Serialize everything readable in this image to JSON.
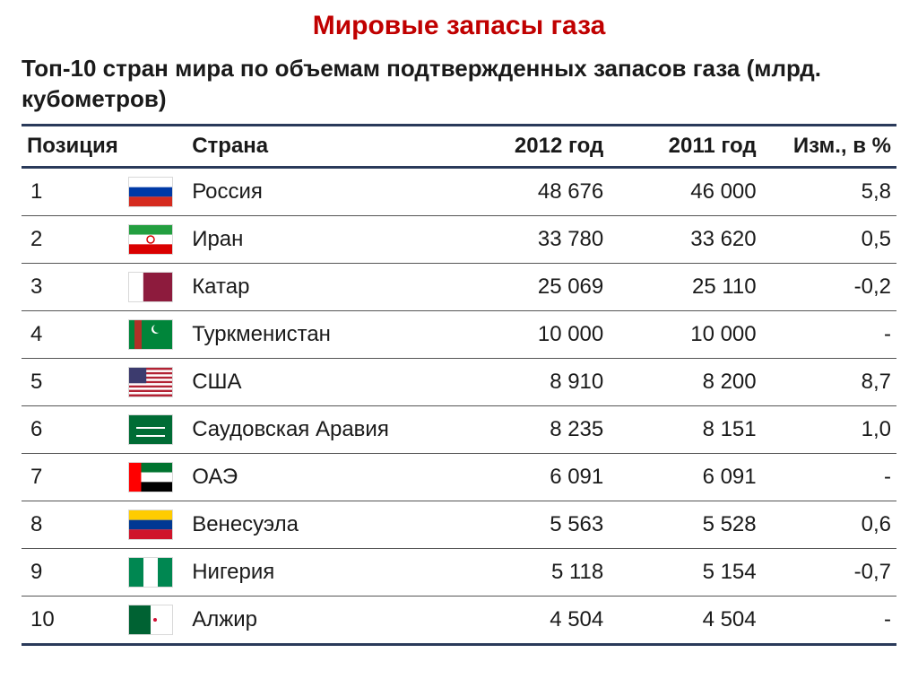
{
  "title": "Мировые запасы газа",
  "subtitle": "Топ-10 стран мира по объемам подтвержденных запасов газа (млрд. кубометров)",
  "columns": {
    "position": "Позиция",
    "country": "Страна",
    "year_2012": "2012 год",
    "year_2011": "2011 год",
    "change": "Изм., в %"
  },
  "rows": [
    {
      "pos": "1",
      "country": "Россия",
      "y2012": "48 676",
      "y2011": "46 000",
      "change": "5,8",
      "flag": "ru"
    },
    {
      "pos": "2",
      "country": "Иран",
      "y2012": "33 780",
      "y2011": "33 620",
      "change": "0,5",
      "flag": "ir"
    },
    {
      "pos": "3",
      "country": "Катар",
      "y2012": "25 069",
      "y2011": "25 110",
      "change": "-0,2",
      "flag": "qa"
    },
    {
      "pos": "4",
      "country": "Туркменистан",
      "y2012": "10 000",
      "y2011": "10 000",
      "change": "-",
      "flag": "tm"
    },
    {
      "pos": "5",
      "country": "США",
      "y2012": "8 910",
      "y2011": "8 200",
      "change": "8,7",
      "flag": "us"
    },
    {
      "pos": "6",
      "country": "Саудовская Аравия",
      "y2012": "8 235",
      "y2011": "8 151",
      "change": "1,0",
      "flag": "sa"
    },
    {
      "pos": "7",
      "country": "ОАЭ",
      "y2012": "6 091",
      "y2011": "6 091",
      "change": "-",
      "flag": "ae"
    },
    {
      "pos": "8",
      "country": "Венесуэла",
      "y2012": "5 563",
      "y2011": "5 528",
      "change": "0,6",
      "flag": "ve"
    },
    {
      "pos": "9",
      "country": "Нигерия",
      "y2012": "5 118",
      "y2011": "5 154",
      "change": "-0,7",
      "flag": "ng"
    },
    {
      "pos": "10",
      "country": "Алжир",
      "y2012": "4 504",
      "y2011": "4 504",
      "change": "-",
      "flag": "dz"
    }
  ],
  "style": {
    "title_color": "#c00000",
    "title_fontsize": 30,
    "subtitle_fontsize": 26,
    "header_border_color": "#2a3a5a",
    "header_border_width": 3,
    "row_border_color": "#555555",
    "row_border_width": 1,
    "cell_fontsize": 24,
    "background": "#ffffff",
    "text_color": "#1a1a1a",
    "flag_width": 48,
    "flag_height": 32,
    "column_align": {
      "position": "left",
      "country": "left",
      "year_2012": "right",
      "year_2011": "right",
      "change": "right"
    }
  },
  "flags": {
    "ru": {
      "stripes_h": [
        "#ffffff",
        "#0039a6",
        "#d52b1e"
      ]
    },
    "ir": {
      "stripes_h": [
        "#239f40",
        "#ffffff",
        "#da0000"
      ],
      "emblem": "#da0000"
    },
    "qa": {
      "left": "#ffffff",
      "right": "#8d1b3d",
      "left_ratio": 0.33
    },
    "tm": {
      "bg": "#00853a",
      "band": "#b03028",
      "crescent": "#ffffff"
    },
    "us": {
      "stripes": [
        "#b22234",
        "#ffffff"
      ],
      "canton": "#3c3b6e"
    },
    "sa": {
      "bg": "#006c35",
      "script": "#ffffff"
    },
    "ae": {
      "left": "#ff0000",
      "stripes_h": [
        "#00732f",
        "#ffffff",
        "#000000"
      ]
    },
    "ve": {
      "stripes_h": [
        "#ffcc00",
        "#003893",
        "#cf142b"
      ]
    },
    "ng": {
      "stripes_v": [
        "#008751",
        "#ffffff",
        "#008751"
      ]
    },
    "dz": {
      "left": "#006233",
      "right": "#ffffff",
      "crescent": "#d21034"
    }
  }
}
